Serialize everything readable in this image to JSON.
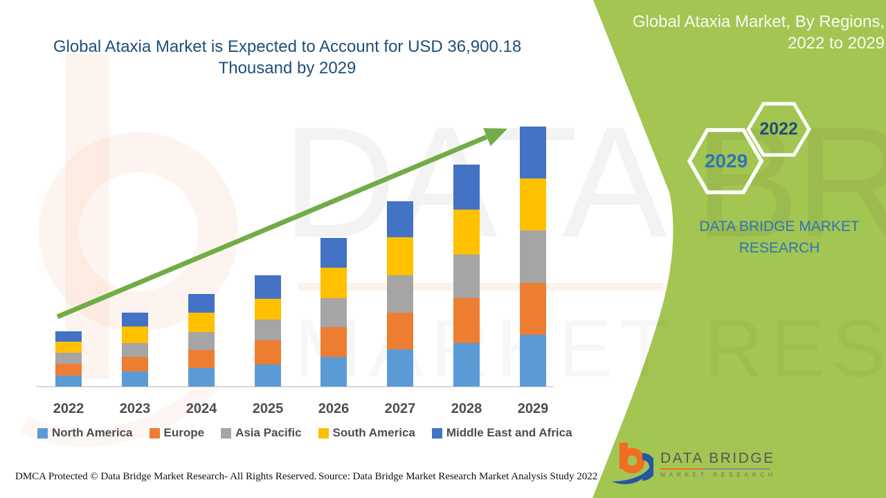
{
  "main_title": {
    "line1": "Global Ataxia Market is Expected to Account for USD 36,900.18",
    "line2": "Thousand by 2029"
  },
  "side_panel": {
    "background_color": "#A3C552",
    "title_line1": "Global Ataxia Market, By Regions,",
    "title_line2": "2022 to 2029",
    "hexagon_top_label": "2022",
    "hexagon_bottom_label": "2029",
    "brand_line1": "DATA BRIDGE MARKET",
    "brand_line2": "RESEARCH"
  },
  "chart_data": {
    "type": "bar",
    "stacked": true,
    "title": "Global Ataxia Market is Expected to Account for USD 36,900.18 Thousand by 2029",
    "unit": "USD Thousand",
    "categories": [
      "2022",
      "2023",
      "2024",
      "2025",
      "2026",
      "2027",
      "2028",
      "2029"
    ],
    "series": [
      {
        "name": "North America",
        "color": "#5B9BD5",
        "values": [
          1570,
          2160,
          2650,
          3140,
          4220,
          5300,
          6180,
          7360.18
        ]
      },
      {
        "name": "Europe",
        "color": "#ED7D31",
        "values": [
          1670,
          2060,
          2550,
          3430,
          4220,
          5200,
          6380,
          7360
        ]
      },
      {
        "name": "Asia Pacific",
        "color": "#A5A5A5",
        "values": [
          1570,
          1960,
          2550,
          2940,
          4120,
          5300,
          6180,
          7460
        ]
      },
      {
        "name": "South America",
        "color": "#FFC000",
        "values": [
          1570,
          2360,
          2750,
          2940,
          4320,
          5400,
          6380,
          7360
        ]
      },
      {
        "name": "Middle East and Africa",
        "color": "#4472C4",
        "values": [
          1470,
          1960,
          2650,
          3340,
          4220,
          5100,
          6380,
          7360
        ]
      }
    ],
    "totals": [
      7850,
      10500,
      13150,
      15790,
      21100,
      26300,
      31500,
      36900.18
    ],
    "ylim": [
      0,
      36900.18
    ],
    "legend_position": "bottom",
    "grid": false,
    "y_axis_shown": false,
    "annotations": {
      "trend_arrow": true,
      "trend_arrow_color": "#70AD47"
    }
  },
  "watermark": {
    "line1": "DATA BRIDGE",
    "line2": "MARKET RESEARCH"
  },
  "logo": {
    "name_line": "DATA BRIDGE",
    "sub_line": "MARKET RESEARCH"
  },
  "footer": {
    "left": "DMCA Protected © Data Bridge Market Research- All Rights Reserved.",
    "right": "Source: Data Bridge Market Research Market Analysis Study 2022"
  }
}
